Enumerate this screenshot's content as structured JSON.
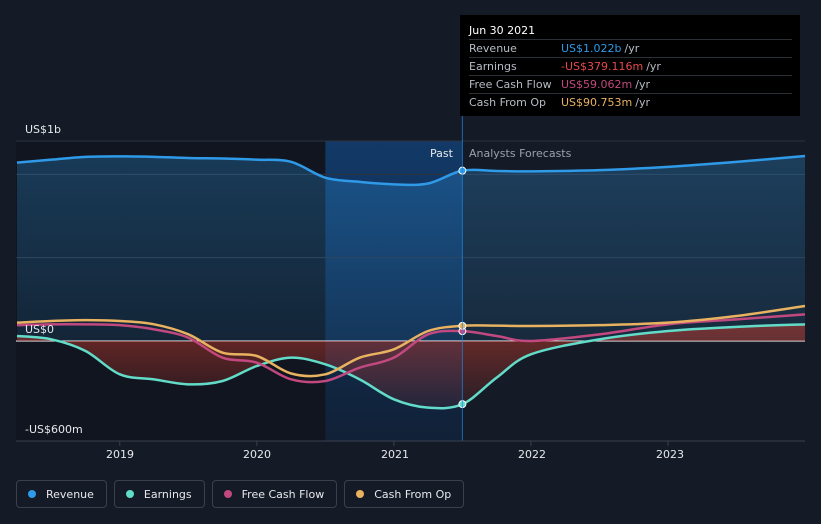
{
  "tooltip": {
    "date": "Jun 30 2021",
    "rows": [
      {
        "label": "Revenue",
        "value": "US$1.022b",
        "unit": "/yr",
        "color": "#2f9ae8"
      },
      {
        "label": "Earnings",
        "value": "-US$379.116m",
        "unit": "/yr",
        "color": "#e84a4a"
      },
      {
        "label": "Free Cash Flow",
        "value": "US$59.062m",
        "unit": "/yr",
        "color": "#c2497f"
      },
      {
        "label": "Cash From Op",
        "value": "US$90.753m",
        "unit": "/yr",
        "color": "#e8b260"
      }
    ]
  },
  "segments": {
    "past": "Past",
    "forecast": "Analysts Forecasts"
  },
  "legend": [
    {
      "label": "Revenue",
      "color": "#2f9ae8"
    },
    {
      "label": "Earnings",
      "color": "#62dcc8"
    },
    {
      "label": "Free Cash Flow",
      "color": "#c2497f"
    },
    {
      "label": "Cash From Op",
      "color": "#e8b260"
    }
  ],
  "chart_data": {
    "type": "line",
    "y_tick_labels": [
      "US$1b",
      "US$0",
      "-US$600m"
    ],
    "x_tick_labels": [
      "2019",
      "2020",
      "2021",
      "2022",
      "2023"
    ],
    "ylim": [
      -600,
      1200
    ],
    "xlim": [
      2018.25,
      2024.0
    ],
    "grid": true,
    "past_until": 2021.5,
    "highlight_range": [
      2020.5,
      2021.5
    ],
    "series": [
      {
        "name": "Revenue",
        "color": "#2f9ae8",
        "area": true,
        "x": [
          2018.25,
          2018.5,
          2018.75,
          2019.0,
          2019.25,
          2019.5,
          2019.75,
          2020.0,
          2020.25,
          2020.5,
          2020.75,
          2021.0,
          2021.25,
          2021.5,
          2021.75,
          2022.0,
          2022.5,
          2023.0,
          2023.5,
          2024.0
        ],
        "y": [
          1070,
          1088,
          1105,
          1108,
          1105,
          1098,
          1095,
          1088,
          1075,
          980,
          955,
          940,
          945,
          1022,
          1020,
          1018,
          1025,
          1045,
          1075,
          1110
        ]
      },
      {
        "name": "Earnings",
        "color": "#62dcc8",
        "x": [
          2018.25,
          2018.5,
          2018.75,
          2019.0,
          2019.25,
          2019.5,
          2019.75,
          2020.0,
          2020.25,
          2020.5,
          2020.75,
          2021.0,
          2021.25,
          2021.5,
          2021.75,
          2022.0,
          2022.5,
          2023.0,
          2023.5,
          2024.0
        ],
        "y": [
          30,
          10,
          -60,
          -200,
          -230,
          -260,
          -240,
          -150,
          -100,
          -140,
          -230,
          -350,
          -400,
          -379,
          -220,
          -80,
          10,
          60,
          85,
          100
        ]
      },
      {
        "name": "Free Cash Flow",
        "color": "#c2497f",
        "x": [
          2018.25,
          2018.5,
          2018.75,
          2019.0,
          2019.25,
          2019.5,
          2019.75,
          2020.0,
          2020.25,
          2020.5,
          2020.75,
          2021.0,
          2021.25,
          2021.5,
          2021.75,
          2022.0,
          2022.5,
          2023.0,
          2023.5,
          2024.0
        ],
        "y": [
          95,
          100,
          100,
          95,
          70,
          20,
          -100,
          -130,
          -230,
          -240,
          -160,
          -100,
          40,
          59,
          30,
          0,
          40,
          100,
          130,
          160
        ]
      },
      {
        "name": "Cash From Op",
        "color": "#e8b260",
        "x": [
          2018.25,
          2018.5,
          2018.75,
          2019.0,
          2019.25,
          2019.5,
          2019.75,
          2020.0,
          2020.25,
          2020.5,
          2020.75,
          2021.0,
          2021.25,
          2021.5,
          2021.75,
          2022.0,
          2022.5,
          2023.0,
          2023.5,
          2024.0
        ],
        "y": [
          110,
          120,
          125,
          120,
          100,
          40,
          -70,
          -90,
          -195,
          -200,
          -100,
          -50,
          60,
          91,
          92,
          90,
          95,
          110,
          150,
          210
        ]
      }
    ]
  }
}
